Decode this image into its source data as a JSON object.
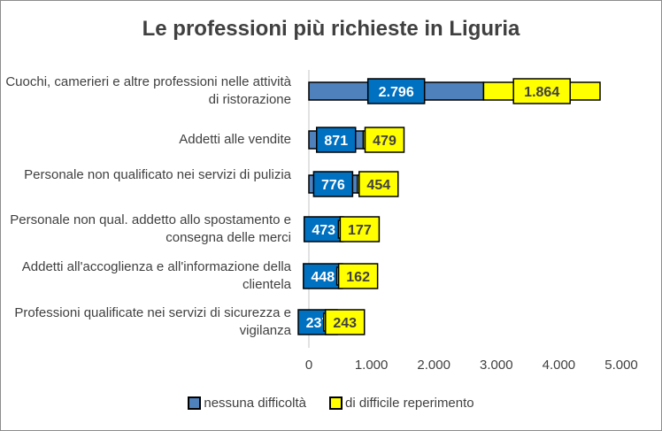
{
  "chart_data": {
    "type": "bar",
    "orientation": "horizontal",
    "stacked": true,
    "title": "Le professioni più richieste in Liguria",
    "categories": [
      "Cuochi, camerieri e altre professioni nelle attività di ristorazione",
      "Addetti alle vendite",
      "Personale non qualificato nei servizi di pulizia",
      "Personale non qual. addetto allo spostamento e consegna delle merci",
      "Addetti all'accoglienza e all'informazione della clientela",
      "Professioni qualificate nei servizi di sicurezza e vigilanza"
    ],
    "series": [
      {
        "name": "nessuna difficoltà",
        "color": "#4f81bd",
        "label_color": "#0070c0",
        "values": [
          2796,
          871,
          776,
          473,
          448,
          237
        ],
        "labels": [
          "2.796",
          "871",
          "776",
          "473",
          "448",
          "237"
        ]
      },
      {
        "name": "di difficile reperimento",
        "color": "#ffff00",
        "label_color": "#ffff00",
        "values": [
          1864,
          479,
          454,
          177,
          162,
          243
        ],
        "labels": [
          "1.864",
          "479",
          "454",
          "177",
          "162",
          "243"
        ]
      }
    ],
    "xlim": [
      0,
      5000
    ],
    "xticks": [
      0,
      1000,
      2000,
      3000,
      4000,
      5000
    ],
    "xtick_labels": [
      "0",
      "1.000",
      "2.000",
      "3.000",
      "4.000",
      "5.000"
    ],
    "grid": false,
    "legend": "bottom"
  }
}
